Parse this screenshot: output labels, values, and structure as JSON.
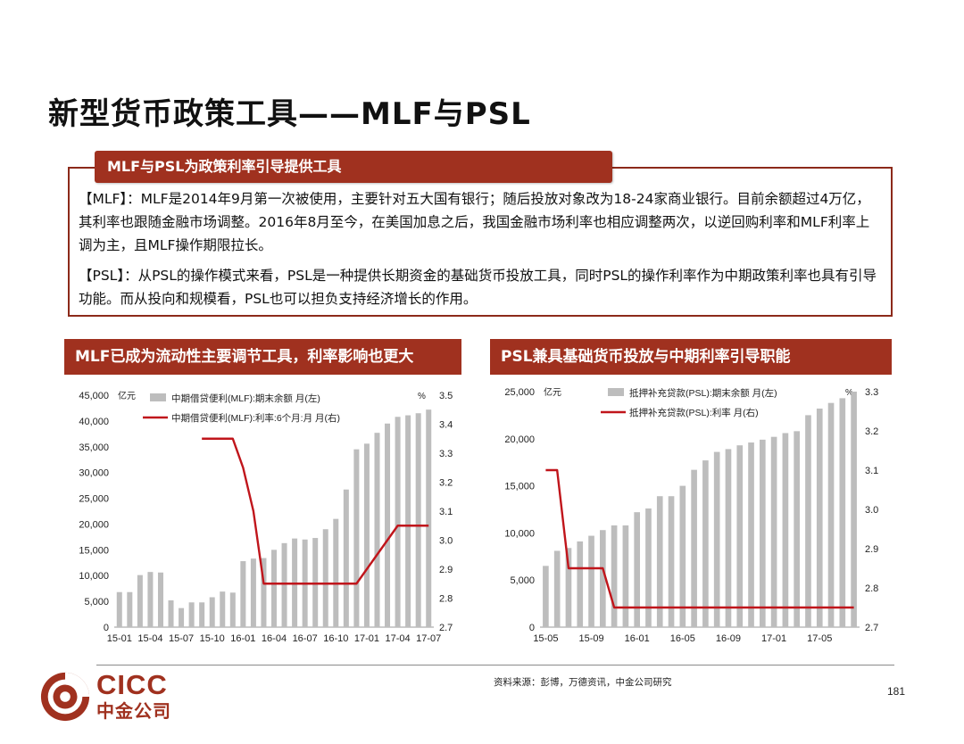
{
  "page": {
    "title": "新型货币政策工具——MLF与PSL",
    "summary_tab": "MLF与PSL为政策利率引导提供工具",
    "summary_paragraphs": [
      "【MLF】：MLF是2014年9月第一次被使用，主要针对五大国有银行；随后投放对象改为18-24家商业银行。目前余额超过4万亿，其利率也跟随金融市场调整。2016年8月至今，在美国加息之后，我国金融市场利率也相应调整两次，以逆回购利率和MLF利率上调为主，且MLF操作期限拉长。",
      "【PSL】：从PSL的操作模式来看，PSL是一种提供长期资金的基础货币投放工具，同时PSL的操作利率作为中期政策利率也具有引导功能。而从投向和规模看，PSL也可以担负支持经济增长的作用。"
    ],
    "left_panel_title": "MLF已成为流动性主要调节工具，利率影响也更大",
    "right_panel_title": "PSL兼具基础货币投放与中期利率引导职能",
    "source_note": "资料来源：彭博，万德资讯，中金公司研究",
    "page_number": "181",
    "logo_en": "CICC",
    "logo_cn": "中金公司"
  },
  "colors": {
    "brand_red": "#a0311f",
    "bar_gray": "#bdbdbd",
    "line_red": "#c0151b"
  },
  "chart_data": [
    {
      "type": "bar+line",
      "y_left_unit": "亿元",
      "y_right_unit": "%",
      "ylim_left": [
        0,
        45000
      ],
      "ylim_right": [
        2.7,
        3.5
      ],
      "y_left_ticks": [
        "0",
        "5,000",
        "10,000",
        "15,000",
        "20,000",
        "25,000",
        "30,000",
        "35,000",
        "40,000",
        "45,000"
      ],
      "y_right_ticks": [
        "2.7",
        "2.8",
        "2.9",
        "3.0",
        "3.1",
        "3.2",
        "3.3",
        "3.4",
        "3.5"
      ],
      "x_tick_labels": [
        "15-01",
        "15-04",
        "15-07",
        "15-10",
        "16-01",
        "16-04",
        "16-07",
        "16-10",
        "17-01",
        "17-04",
        "17-07"
      ],
      "x_tick_index": [
        0,
        3,
        6,
        9,
        12,
        15,
        18,
        21,
        24,
        27,
        30
      ],
      "legend": [
        "中期借贷便利(MLF):期末余额 月(左)",
        "中期借贷便利(MLF):利率:6个月:月 月(右)"
      ],
      "bars": [
        6800,
        6800,
        10100,
        10700,
        10600,
        5200,
        3700,
        4800,
        4800,
        5800,
        6900,
        6700,
        12800,
        13300,
        13400,
        15000,
        16300,
        17200,
        17000,
        17300,
        19000,
        21000,
        26700,
        34500,
        35600,
        37700,
        39500,
        40800,
        41100,
        41500,
        42200
      ],
      "line": [
        null,
        null,
        null,
        null,
        null,
        null,
        null,
        null,
        3.35,
        3.35,
        3.35,
        3.35,
        3.25,
        3.1,
        2.85,
        2.85,
        2.85,
        2.85,
        2.85,
        2.85,
        2.85,
        2.85,
        2.85,
        2.85,
        2.9,
        2.95,
        3.0,
        3.05,
        3.05,
        3.05,
        3.05
      ]
    },
    {
      "type": "bar+line",
      "y_left_unit": "亿元",
      "y_right_unit": "%",
      "ylim_left": [
        0,
        25000
      ],
      "ylim_right": [
        2.7,
        3.3
      ],
      "y_left_ticks": [
        "0",
        "5,000",
        "10,000",
        "15,000",
        "20,000",
        "25,000"
      ],
      "y_right_ticks": [
        "2.7",
        "2.8",
        "2.9",
        "3.0",
        "3.1",
        "3.2",
        "3.3"
      ],
      "x_tick_labels": [
        "15-05",
        "15-09",
        "16-01",
        "16-05",
        "16-09",
        "17-01",
        "17-05"
      ],
      "x_tick_index": [
        0,
        4,
        8,
        12,
        16,
        20,
        24
      ],
      "legend": [
        "抵押补充贷款(PSL):期末余额 月(左)",
        "抵押补充贷款(PSL):利率 月(右)"
      ],
      "bars": [
        6500,
        8100,
        8400,
        9100,
        9700,
        10300,
        10800,
        10800,
        12200,
        12600,
        13900,
        13900,
        15000,
        16700,
        17700,
        18600,
        18900,
        19300,
        19600,
        19900,
        20200,
        20600,
        20800,
        22500,
        23200,
        23800,
        24300,
        25000
      ],
      "line": [
        3.1,
        3.1,
        2.85,
        2.85,
        2.85,
        2.85,
        2.75,
        2.75,
        2.75,
        2.75,
        2.75,
        2.75,
        2.75,
        2.75,
        2.75,
        2.75,
        2.75,
        2.75,
        2.75,
        2.75,
        2.75,
        2.75,
        2.75,
        2.75,
        2.75,
        2.75,
        2.75,
        2.75
      ]
    }
  ]
}
